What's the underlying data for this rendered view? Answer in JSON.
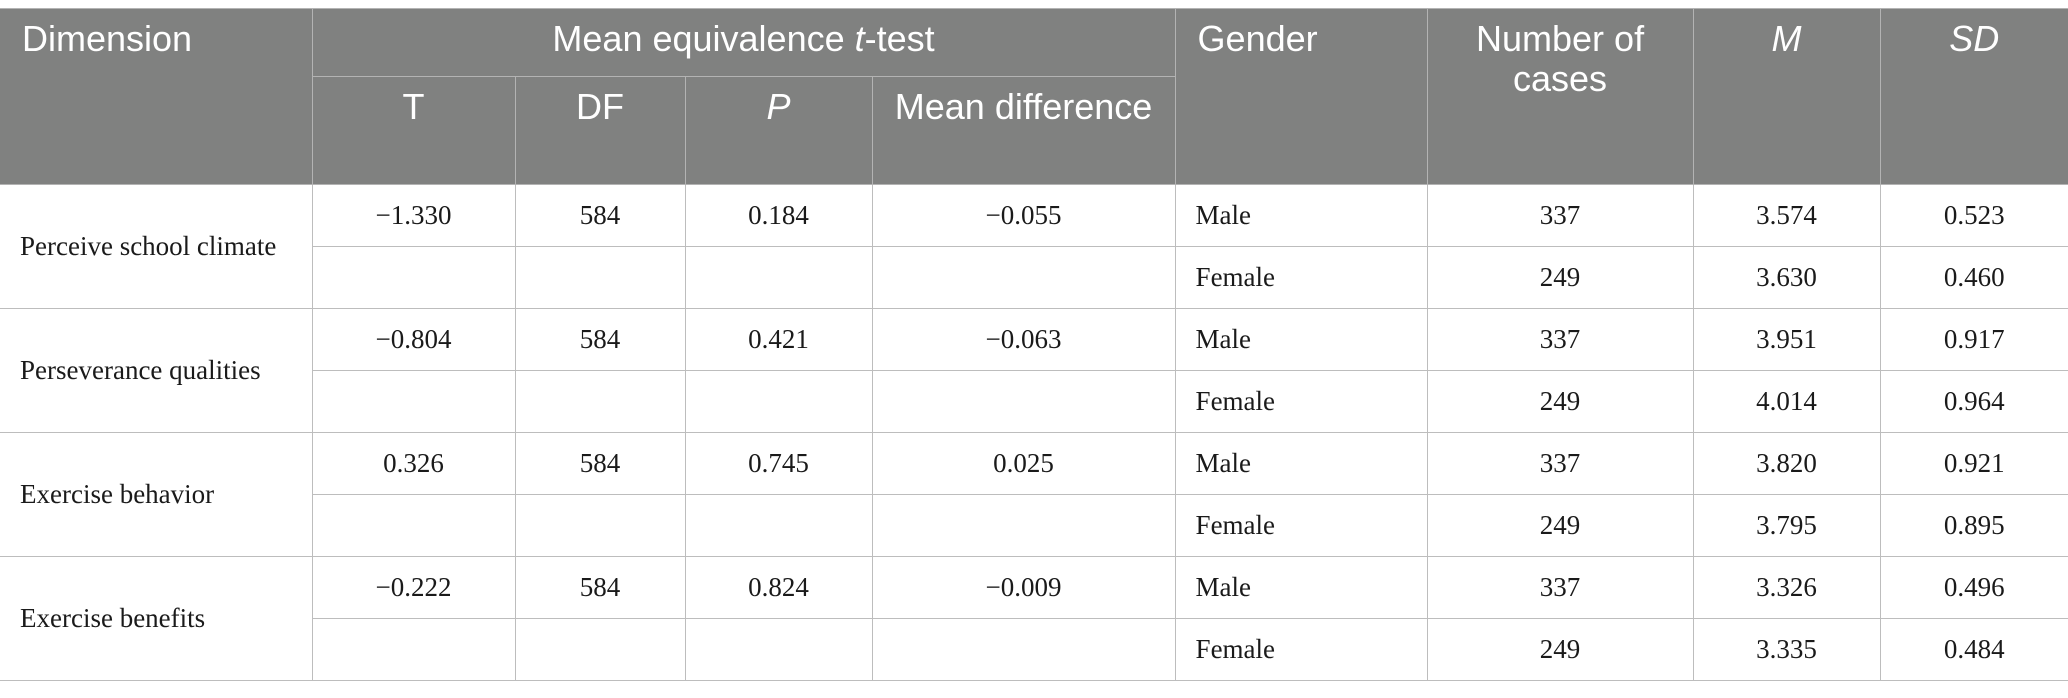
{
  "header": {
    "dimension": "Dimension",
    "ttest_group_prefix": "Mean equivalence ",
    "ttest_group_italic": "t",
    "ttest_group_suffix": "-test",
    "t": "T",
    "df": "DF",
    "p": "P",
    "mean_difference": "Mean difference",
    "gender": "Gender",
    "number_of_cases": "Number of cases",
    "m": "M",
    "sd": "SD"
  },
  "rows": [
    {
      "dimension": "Perceive school climate",
      "t": "−1.330",
      "df": "584",
      "p": "0.184",
      "mean_difference": "−0.055",
      "groups": [
        {
          "gender": "Male",
          "n": "337",
          "m": "3.574",
          "sd": "0.523"
        },
        {
          "gender": "Female",
          "n": "249",
          "m": "3.630",
          "sd": "0.460"
        }
      ]
    },
    {
      "dimension": "Perseverance qualities",
      "t": "−0.804",
      "df": "584",
      "p": "0.421",
      "mean_difference": "−0.063",
      "groups": [
        {
          "gender": "Male",
          "n": "337",
          "m": "3.951",
          "sd": "0.917"
        },
        {
          "gender": "Female",
          "n": "249",
          "m": "4.014",
          "sd": "0.964"
        }
      ]
    },
    {
      "dimension": "Exercise behavior",
      "t": "0.326",
      "df": "584",
      "p": "0.745",
      "mean_difference": "0.025",
      "groups": [
        {
          "gender": "Male",
          "n": "337",
          "m": "3.820",
          "sd": "0.921"
        },
        {
          "gender": "Female",
          "n": "249",
          "m": "3.795",
          "sd": "0.895"
        }
      ]
    },
    {
      "dimension": "Exercise benefits",
      "t": "−0.222",
      "df": "584",
      "p": "0.824",
      "mean_difference": "−0.009",
      "groups": [
        {
          "gender": "Male",
          "n": "337",
          "m": "3.326",
          "sd": "0.496"
        },
        {
          "gender": "Female",
          "n": "249",
          "m": "3.335",
          "sd": "0.484"
        }
      ]
    }
  ]
}
